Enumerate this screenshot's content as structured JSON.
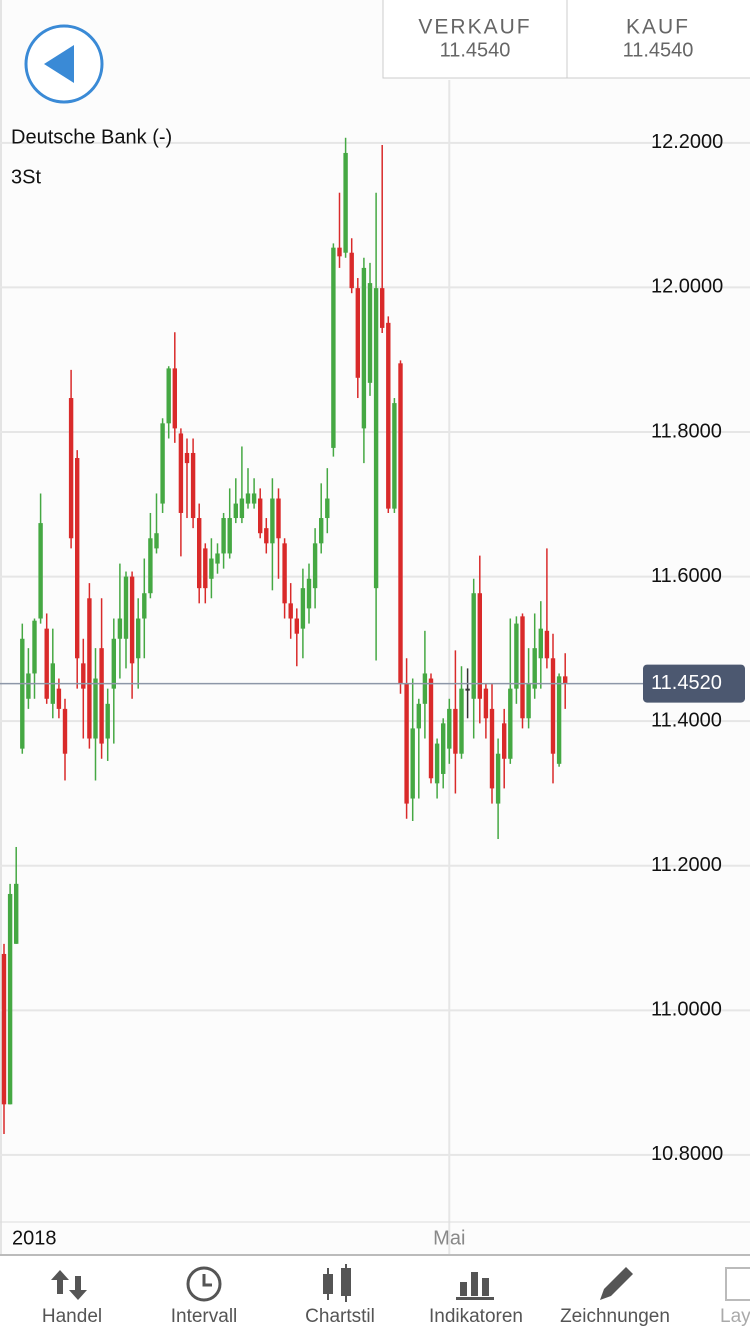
{
  "quote": {
    "sell_label": "VERKAUF",
    "sell_price": "11.4540",
    "buy_label": "KAUF",
    "buy_price": "11.4540"
  },
  "chart_data": {
    "type": "candlestick",
    "title": "Deutsche Bank (-)",
    "subtitle": "3St",
    "categories": [
      "2018",
      null,
      null,
      null,
      null,
      null,
      null,
      null,
      null,
      null,
      null,
      null,
      null,
      null,
      null,
      null,
      null,
      null,
      null,
      null,
      null,
      null,
      null,
      null,
      null,
      null,
      null,
      null,
      null,
      null,
      null,
      null,
      null,
      null,
      null,
      null,
      null,
      null,
      null,
      null,
      null,
      null,
      null,
      null,
      null,
      null,
      null,
      null,
      null,
      null,
      null,
      null,
      null,
      null,
      null,
      null,
      null,
      null,
      null,
      null,
      null,
      null,
      null,
      null,
      null,
      null,
      null,
      null,
      null,
      null,
      null,
      null,
      null,
      "Mai",
      null,
      null,
      null,
      null,
      null,
      null,
      null,
      null,
      null,
      null,
      null,
      null,
      null,
      null,
      null,
      null,
      null,
      null,
      null
    ],
    "open": [
      11.078,
      10.87,
      11.092,
      11.362,
      11.431,
      11.466,
      11.542,
      11.528,
      11.424,
      11.445,
      11.417,
      11.847,
      11.764,
      11.48,
      11.57,
      11.376,
      11.501,
      11.376,
      11.445,
      11.514,
      11.514,
      11.6,
      11.487,
      11.542,
      11.577,
      11.639,
      11.701,
      11.812,
      11.888,
      11.798,
      11.771,
      11.771,
      11.681,
      11.639,
      11.597,
      11.618,
      11.632,
      11.632,
      11.681,
      11.681,
      11.701,
      11.701,
      11.708,
      11.667,
      11.646,
      11.708,
      11.646,
      11.563,
      11.542,
      11.528,
      11.556,
      11.584,
      11.646,
      11.681,
      11.778,
      12.055,
      12.048,
      12.048,
      11.999,
      11.805,
      11.868,
      11.584,
      11.999,
      11.951,
      11.694,
      11.895,
      11.452,
      11.293,
      11.39,
      11.424,
      11.459,
      11.314,
      11.327,
      11.362,
      11.417,
      11.355,
      11.445,
      11.431,
      11.577,
      11.445,
      11.417,
      11.286,
      11.397,
      11.348,
      11.445,
      11.545,
      11.404,
      11.445,
      11.487,
      11.525,
      11.487,
      11.341,
      11.462
    ],
    "high": [
      11.092,
      11.175,
      11.226,
      11.535,
      11.501,
      11.542,
      11.715,
      11.549,
      11.528,
      11.459,
      11.431,
      11.886,
      11.775,
      11.514,
      11.591,
      11.501,
      11.57,
      11.445,
      11.542,
      11.618,
      11.607,
      11.607,
      11.57,
      11.625,
      11.688,
      11.715,
      11.819,
      11.891,
      11.938,
      11.805,
      11.791,
      11.791,
      11.701,
      11.646,
      11.653,
      11.646,
      11.688,
      11.722,
      11.736,
      11.78,
      11.75,
      11.736,
      11.722,
      11.681,
      11.736,
      11.722,
      11.653,
      11.591,
      11.556,
      11.611,
      11.618,
      11.667,
      11.729,
      11.75,
      12.061,
      12.131,
      12.207,
      12.068,
      12.013,
      12.041,
      12.034,
      12.131,
      12.197,
      11.96,
      11.847,
      11.899,
      11.487,
      11.459,
      11.431,
      11.525,
      11.466,
      11.376,
      11.404,
      11.431,
      11.498,
      11.476,
      11.473,
      11.597,
      11.629,
      11.452,
      11.452,
      11.376,
      11.417,
      11.542,
      11.545,
      11.549,
      11.501,
      11.549,
      11.566,
      11.639,
      11.521,
      11.466,
      11.494
    ],
    "low": [
      10.829,
      10.87,
      11.092,
      11.355,
      11.417,
      11.431,
      11.535,
      11.424,
      11.404,
      11.404,
      11.318,
      11.639,
      11.445,
      11.376,
      11.362,
      11.318,
      11.348,
      11.345,
      11.369,
      11.459,
      11.473,
      11.431,
      11.445,
      11.487,
      11.57,
      11.632,
      11.688,
      11.791,
      11.785,
      11.628,
      11.681,
      11.667,
      11.563,
      11.563,
      11.57,
      11.604,
      11.611,
      11.625,
      11.674,
      11.674,
      11.694,
      11.694,
      11.653,
      11.632,
      11.581,
      11.597,
      11.542,
      11.514,
      11.476,
      11.487,
      11.535,
      11.556,
      11.632,
      11.66,
      11.766,
      12.027,
      12.041,
      11.992,
      11.847,
      11.757,
      11.85,
      11.484,
      11.937,
      11.688,
      11.688,
      11.438,
      11.265,
      11.262,
      11.293,
      11.376,
      11.314,
      11.293,
      11.307,
      11.341,
      11.3,
      11.348,
      11.404,
      11.376,
      11.397,
      11.376,
      11.286,
      11.237,
      11.307,
      11.341,
      11.424,
      11.39,
      11.39,
      11.431,
      11.445,
      11.473,
      11.314,
      11.337,
      11.417
    ],
    "close": [
      10.87,
      11.161,
      11.175,
      11.514,
      11.466,
      11.539,
      11.674,
      11.431,
      11.48,
      11.417,
      11.355,
      11.653,
      11.487,
      11.445,
      11.376,
      11.459,
      11.369,
      11.424,
      11.514,
      11.542,
      11.6,
      11.48,
      11.542,
      11.577,
      11.653,
      11.66,
      11.812,
      11.888,
      11.805,
      11.688,
      11.757,
      11.681,
      11.584,
      11.584,
      11.625,
      11.632,
      11.681,
      11.681,
      11.701,
      11.708,
      11.715,
      11.715,
      11.66,
      11.646,
      11.708,
      11.653,
      11.563,
      11.542,
      11.521,
      11.584,
      11.597,
      11.646,
      11.681,
      11.708,
      12.055,
      12.043,
      12.186,
      11.999,
      11.875,
      12.027,
      12.006,
      11.999,
      11.944,
      11.694,
      11.84,
      11.452,
      11.286,
      11.39,
      11.424,
      11.466,
      11.321,
      11.369,
      11.397,
      11.417,
      11.355,
      11.445,
      11.445,
      11.577,
      11.431,
      11.404,
      11.307,
      11.355,
      11.348,
      11.445,
      11.535,
      11.404,
      11.452,
      11.501,
      11.528,
      11.487,
      11.355,
      11.462,
      11.452
    ],
    "ylim": [
      10.71,
      12.28
    ],
    "yticks": [
      {
        "value": 10.8,
        "label": "10.8000"
      },
      {
        "value": 11.0,
        "label": "11.0000"
      },
      {
        "value": 11.2,
        "label": "11.2000"
      },
      {
        "value": 11.4,
        "label": "11.4000"
      },
      {
        "value": 11.6,
        "label": "11.6000"
      },
      {
        "value": 11.8,
        "label": "11.8000"
      },
      {
        "value": 12.0,
        "label": "12.0000"
      },
      {
        "value": 12.2,
        "label": "12.2000"
      }
    ],
    "grid": true,
    "up_color": "#45a843",
    "down_color": "#d92a2a",
    "neutral_color": "#333333",
    "last_price": 11.452,
    "last_price_label": "11.4520"
  },
  "tabs": [
    "Handel",
    "Intervall",
    "Chartstil",
    "Indikatoren",
    "Zeichnungen",
    "Layout"
  ]
}
